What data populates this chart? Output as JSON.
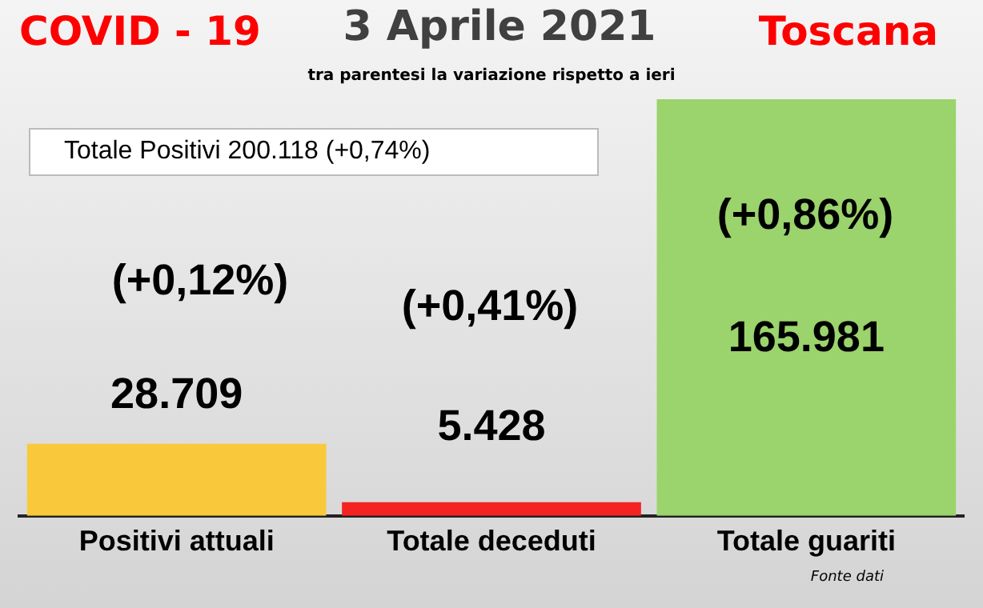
{
  "chart_data": {
    "type": "bar",
    "title": "3 Aprile 2021",
    "subtitle": "tra parentesi la variazione rispetto a ieri",
    "categories": [
      "Positivi attuali",
      "Totale deceduti",
      "Totale guariti"
    ],
    "values": [
      28709,
      5428,
      165981
    ],
    "colors": [
      "#f9c93b",
      "#f52222",
      "#9bd36c"
    ],
    "value_labels": [
      "28.709",
      "5.428",
      "165.981"
    ],
    "tick_labels": "x",
    "legend": false,
    "annotations": [
      "COVID - 19",
      "Toscana",
      "Totale Positivi     200.118 (+0,74%)",
      "(+0,12%)",
      "(+0,41%)",
      "(+0,86%)",
      "Fonte dati"
    ]
  }
}
